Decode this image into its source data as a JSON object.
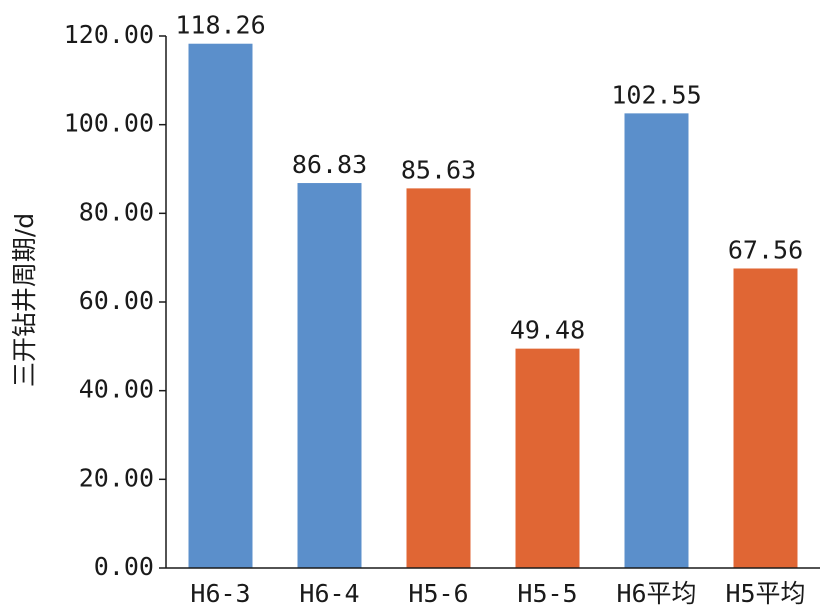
{
  "chart_data": {
    "type": "bar",
    "title": "",
    "xlabel": "",
    "ylabel": "三开钻井周期/d",
    "ylim": [
      0,
      120
    ],
    "yticks": [
      "0.00",
      "20.00",
      "40.00",
      "60.00",
      "80.00",
      "100.00",
      "120.00"
    ],
    "categories": [
      "H6-3",
      "H6-4",
      "H5-6",
      "H5-5",
      "H6平均",
      "H5平均"
    ],
    "values": [
      118.26,
      86.83,
      85.63,
      49.48,
      102.55,
      67.56
    ],
    "data_labels": [
      "118.26",
      "86.83",
      "85.63",
      "49.48",
      "102.55",
      "67.56"
    ],
    "colors": [
      "#5b8fcb",
      "#5b8fcb",
      "#e06634",
      "#e06634",
      "#5b8fcb",
      "#e06634"
    ],
    "grid": false,
    "legend": "none"
  }
}
